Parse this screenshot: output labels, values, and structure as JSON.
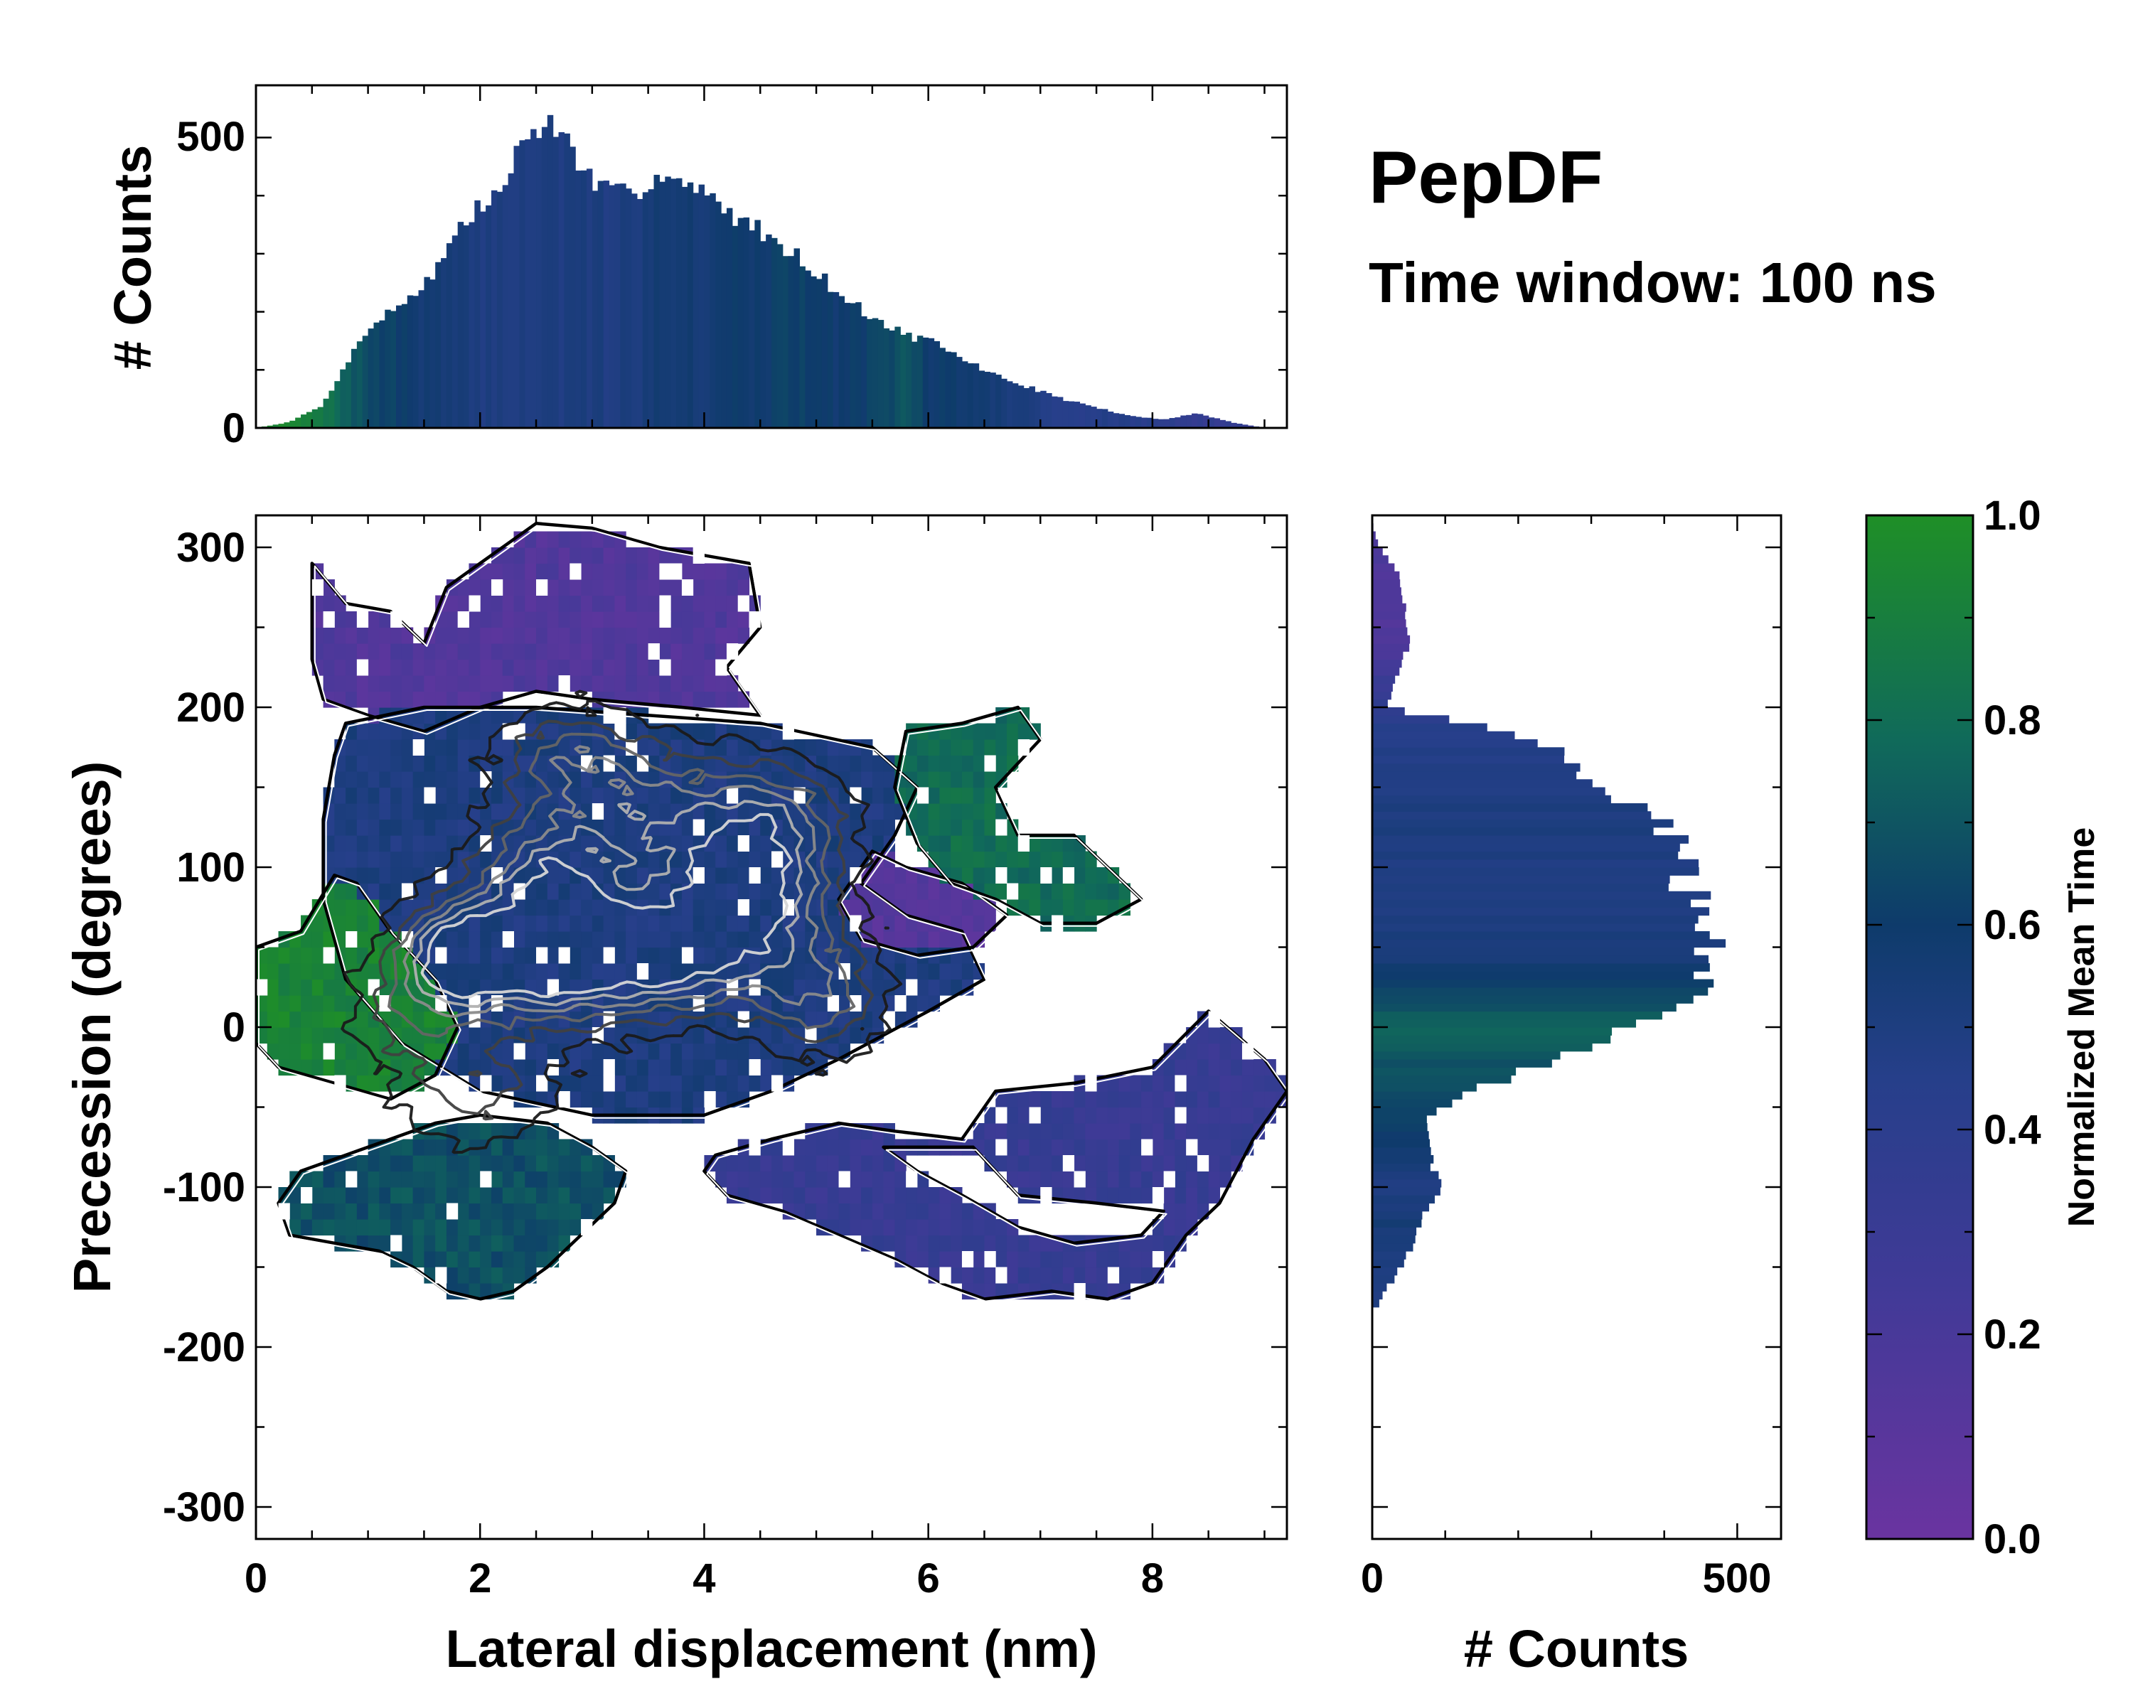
{
  "figure_title": "PepDF",
  "figure_subtitle": "Time window: 100 ns",
  "colors": {
    "cmap_low": "#6a34a0",
    "cmap_q1": "#403a97",
    "cmap_q2": "#263f8a",
    "cmap_mid": "#0e3b6b",
    "cmap_q3": "#106a5a",
    "cmap_high": "#1f8f27",
    "contour_dark": "#1a1a1a",
    "contour_light": "#d6d6d6",
    "frame": "#000000"
  },
  "chart_data": [
    {
      "id": "top-histogram",
      "type": "bar",
      "title": "",
      "xlabel": "",
      "ylabel": "# Counts",
      "xlim": [
        0,
        9.2
      ],
      "ylim": [
        0,
        590
      ],
      "yticks": [
        0,
        500
      ],
      "bin_width": 0.05,
      "profile_x": [
        0,
        0.3,
        0.6,
        0.8,
        1.0,
        1.2,
        1.4,
        1.6,
        1.8,
        2.0,
        2.2,
        2.35,
        2.5,
        2.65,
        2.8,
        3.0,
        3.2,
        3.4,
        3.6,
        3.8,
        4.0,
        4.2,
        4.4,
        4.6,
        4.8,
        5.0,
        5.2,
        5.5,
        5.8,
        6.0,
        6.3,
        6.6,
        6.9,
        7.2,
        7.5,
        7.8,
        8.1,
        8.4,
        8.7,
        9.0,
        9.2
      ],
      "profile_counts": [
        0,
        10,
        40,
        110,
        170,
        200,
        230,
        270,
        340,
        380,
        410,
        480,
        520,
        520,
        490,
        420,
        400,
        410,
        440,
        420,
        400,
        375,
        350,
        330,
        300,
        270,
        230,
        190,
        160,
        150,
        120,
        90,
        70,
        50,
        35,
        20,
        15,
        25,
        10,
        0,
        0
      ],
      "profile_color_t": [
        0.95,
        0.95,
        0.85,
        0.75,
        0.65,
        0.62,
        0.58,
        0.55,
        0.52,
        0.5,
        0.5,
        0.5,
        0.5,
        0.5,
        0.5,
        0.5,
        0.5,
        0.52,
        0.55,
        0.58,
        0.55,
        0.6,
        0.58,
        0.6,
        0.62,
        0.6,
        0.58,
        0.62,
        0.7,
        0.6,
        0.58,
        0.55,
        0.5,
        0.45,
        0.45,
        0.45,
        0.4,
        0.35,
        0.35,
        0.35,
        0.35
      ]
    },
    {
      "id": "right-histogram",
      "type": "bar",
      "orientation": "horizontal",
      "title": "",
      "xlabel": "# Counts",
      "ylabel": "",
      "xlim": [
        0,
        560
      ],
      "ylim": [
        -320,
        320
      ],
      "xticks": [
        0,
        500
      ],
      "bin_width": 5,
      "profile_y": [
        -170,
        -150,
        -120,
        -100,
        -80,
        -60,
        -40,
        -20,
        0,
        20,
        40,
        50,
        60,
        80,
        100,
        120,
        140,
        160,
        180,
        200,
        240,
        280,
        300,
        315
      ],
      "profile_counts": [
        10,
        40,
        70,
        90,
        80,
        70,
        130,
        260,
        350,
        420,
        500,
        460,
        480,
        440,
        420,
        410,
        350,
        280,
        230,
        20,
        50,
        40,
        10,
        0
      ],
      "profile_color_t": [
        0.5,
        0.5,
        0.55,
        0.5,
        0.55,
        0.65,
        0.65,
        0.7,
        0.75,
        0.65,
        0.55,
        0.52,
        0.5,
        0.5,
        0.5,
        0.5,
        0.5,
        0.48,
        0.45,
        0.4,
        0.15,
        0.15,
        0.2,
        0.2
      ]
    },
    {
      "id": "main-2d-histogram",
      "type": "heatmap",
      "title": "",
      "xlabel": "Lateral displacement (nm)",
      "ylabel": "Precession (degrees)",
      "xlim": [
        0,
        9.2
      ],
      "ylim": [
        -320,
        320
      ],
      "xticks": [
        0,
        2,
        4,
        6,
        8
      ],
      "yticks": [
        -300,
        -200,
        -100,
        0,
        100,
        200,
        300
      ],
      "regions": [
        {
          "name": "upper-purple",
          "polygon": [
            [
              0.5,
              290
            ],
            [
              0.8,
              265
            ],
            [
              1.2,
              260
            ],
            [
              1.5,
              240
            ],
            [
              1.7,
              275
            ],
            [
              2.0,
              290
            ],
            [
              2.5,
              315
            ],
            [
              3.0,
              312
            ],
            [
              3.6,
              300
            ],
            [
              4.0,
              295
            ],
            [
              4.4,
              290
            ],
            [
              4.5,
              250
            ],
            [
              4.2,
              225
            ],
            [
              4.5,
              195
            ],
            [
              3.8,
              200
            ],
            [
              3.0,
              205
            ],
            [
              2.5,
              210
            ],
            [
              2.0,
              200
            ],
            [
              1.5,
              185
            ],
            [
              1.0,
              195
            ],
            [
              0.6,
              205
            ],
            [
              0.5,
              230
            ]
          ],
          "value": 0.15
        },
        {
          "name": "central-blue",
          "polygon": [
            [
              0.8,
              190
            ],
            [
              1.5,
              200
            ],
            [
              2.5,
              200
            ],
            [
              3.5,
              195
            ],
            [
              4.5,
              190
            ],
            [
              5.5,
              175
            ],
            [
              5.9,
              150
            ],
            [
              5.7,
              120
            ],
            [
              5.4,
              90
            ],
            [
              5.8,
              70
            ],
            [
              6.3,
              60
            ],
            [
              6.5,
              30
            ],
            [
              6.0,
              10
            ],
            [
              5.2,
              -20
            ],
            [
              4.6,
              -40
            ],
            [
              4.0,
              -55
            ],
            [
              3.0,
              -55
            ],
            [
              2.0,
              -40
            ],
            [
              1.3,
              -10
            ],
            [
              0.8,
              30
            ],
            [
              0.6,
              80
            ],
            [
              0.6,
              130
            ],
            [
              0.7,
              170
            ]
          ],
          "value": 0.5
        },
        {
          "name": "violet-patch",
          "polygon": [
            [
              5.5,
              110
            ],
            [
              5.8,
              100
            ],
            [
              6.3,
              90
            ],
            [
              6.7,
              70
            ],
            [
              6.4,
              50
            ],
            [
              5.9,
              45
            ],
            [
              5.4,
              55
            ],
            [
              5.2,
              80
            ]
          ],
          "value": 0.12
        },
        {
          "name": "right-green-wing",
          "polygon": [
            [
              5.8,
              185
            ],
            [
              6.3,
              190
            ],
            [
              6.8,
              200
            ],
            [
              7.0,
              180
            ],
            [
              6.6,
              150
            ],
            [
              6.8,
              120
            ],
            [
              7.3,
              120
            ],
            [
              7.6,
              100
            ],
            [
              7.9,
              80
            ],
            [
              7.5,
              65
            ],
            [
              7.0,
              65
            ],
            [
              6.6,
              80
            ],
            [
              6.2,
              90
            ],
            [
              5.9,
              115
            ],
            [
              5.7,
              150
            ]
          ],
          "value": 0.8
        },
        {
          "name": "left-green",
          "polygon": [
            [
              0.0,
              50
            ],
            [
              0.4,
              60
            ],
            [
              0.7,
              95
            ],
            [
              0.9,
              90
            ],
            [
              1.2,
              60
            ],
            [
              1.6,
              30
            ],
            [
              1.8,
              0
            ],
            [
              1.6,
              -30
            ],
            [
              1.2,
              -45
            ],
            [
              0.7,
              -35
            ],
            [
              0.2,
              -25
            ],
            [
              0.0,
              -10
            ]
          ],
          "value": 0.93
        },
        {
          "name": "lower-teal",
          "polygon": [
            [
              0.4,
              -90
            ],
            [
              0.8,
              -80
            ],
            [
              1.2,
              -70
            ],
            [
              1.6,
              -60
            ],
            [
              2.0,
              -55
            ],
            [
              2.6,
              -60
            ],
            [
              3.0,
              -75
            ],
            [
              3.3,
              -90
            ],
            [
              3.2,
              -110
            ],
            [
              2.9,
              -130
            ],
            [
              2.6,
              -150
            ],
            [
              2.3,
              -165
            ],
            [
              2.0,
              -170
            ],
            [
              1.7,
              -165
            ],
            [
              1.4,
              -150
            ],
            [
              1.1,
              -140
            ],
            [
              0.7,
              -135
            ],
            [
              0.3,
              -130
            ],
            [
              0.2,
              -110
            ]
          ],
          "value": 0.68
        },
        {
          "name": "lower-right-blue",
          "polygon": [
            [
              4.1,
              -80
            ],
            [
              4.6,
              -70
            ],
            [
              5.2,
              -60
            ],
            [
              5.7,
              -65
            ],
            [
              6.3,
              -70
            ],
            [
              6.6,
              -40
            ],
            [
              7.3,
              -35
            ],
            [
              8.0,
              -25
            ],
            [
              8.5,
              10
            ],
            [
              9.0,
              -20
            ],
            [
              9.2,
              -40
            ],
            [
              8.9,
              -70
            ],
            [
              8.6,
              -110
            ],
            [
              8.3,
              -130
            ],
            [
              8.0,
              -160
            ],
            [
              7.6,
              -170
            ],
            [
              7.1,
              -165
            ],
            [
              6.5,
              -170
            ],
            [
              6.1,
              -160
            ],
            [
              5.7,
              -145
            ],
            [
              5.2,
              -130
            ],
            [
              4.7,
              -115
            ],
            [
              4.2,
              -105
            ],
            [
              4.0,
              -90
            ]
          ],
          "value": 0.32
        },
        {
          "name": "lower-right-hole",
          "polygon": [
            [
              5.6,
              -75
            ],
            [
              6.4,
              -75
            ],
            [
              6.8,
              -105
            ],
            [
              7.5,
              -110
            ],
            [
              8.1,
              -115
            ],
            [
              7.9,
              -130
            ],
            [
              7.3,
              -135
            ],
            [
              6.8,
              -125
            ],
            [
              6.3,
              -105
            ],
            [
              5.9,
              -90
            ]
          ],
          "value": null
        }
      ],
      "density_peaks": [
        {
          "x": 1.8,
          "y": 45,
          "sx": 0.35,
          "sy": 22,
          "w": 1.0
        },
        {
          "x": 2.6,
          "y": 40,
          "sx": 0.45,
          "sy": 25,
          "w": 0.9
        },
        {
          "x": 3.6,
          "y": 45,
          "sx": 0.55,
          "sy": 25,
          "w": 1.0
        },
        {
          "x": 4.4,
          "y": 80,
          "sx": 0.5,
          "sy": 30,
          "w": 0.9
        },
        {
          "x": 2.6,
          "y": 90,
          "sx": 0.45,
          "sy": 30,
          "w": 0.75
        },
        {
          "x": 3.5,
          "y": 130,
          "sx": 0.6,
          "sy": 30,
          "w": 0.6
        },
        {
          "x": 4.6,
          "y": 130,
          "sx": 0.45,
          "sy": 25,
          "w": 0.55
        },
        {
          "x": 5.0,
          "y": 20,
          "sx": 0.4,
          "sy": 25,
          "w": 0.55
        },
        {
          "x": 2.8,
          "y": 170,
          "sx": 0.45,
          "sy": 20,
          "w": 0.45
        },
        {
          "x": 1.4,
          "y": 10,
          "sx": 0.4,
          "sy": 25,
          "w": 0.35
        },
        {
          "x": 2.0,
          "y": -40,
          "sx": 0.5,
          "sy": 25,
          "w": 0.35
        }
      ],
      "contour_levels": [
        0.15,
        0.3,
        0.45,
        0.6,
        0.75,
        0.9
      ]
    },
    {
      "id": "colorbar",
      "type": "heatmap",
      "title": "",
      "ylabel": "Normalized Mean Time",
      "ylim": [
        0.0,
        1.0
      ],
      "ticks": [
        "0.0",
        "0.2",
        "0.4",
        "0.6",
        "0.8",
        "1.0"
      ]
    }
  ]
}
